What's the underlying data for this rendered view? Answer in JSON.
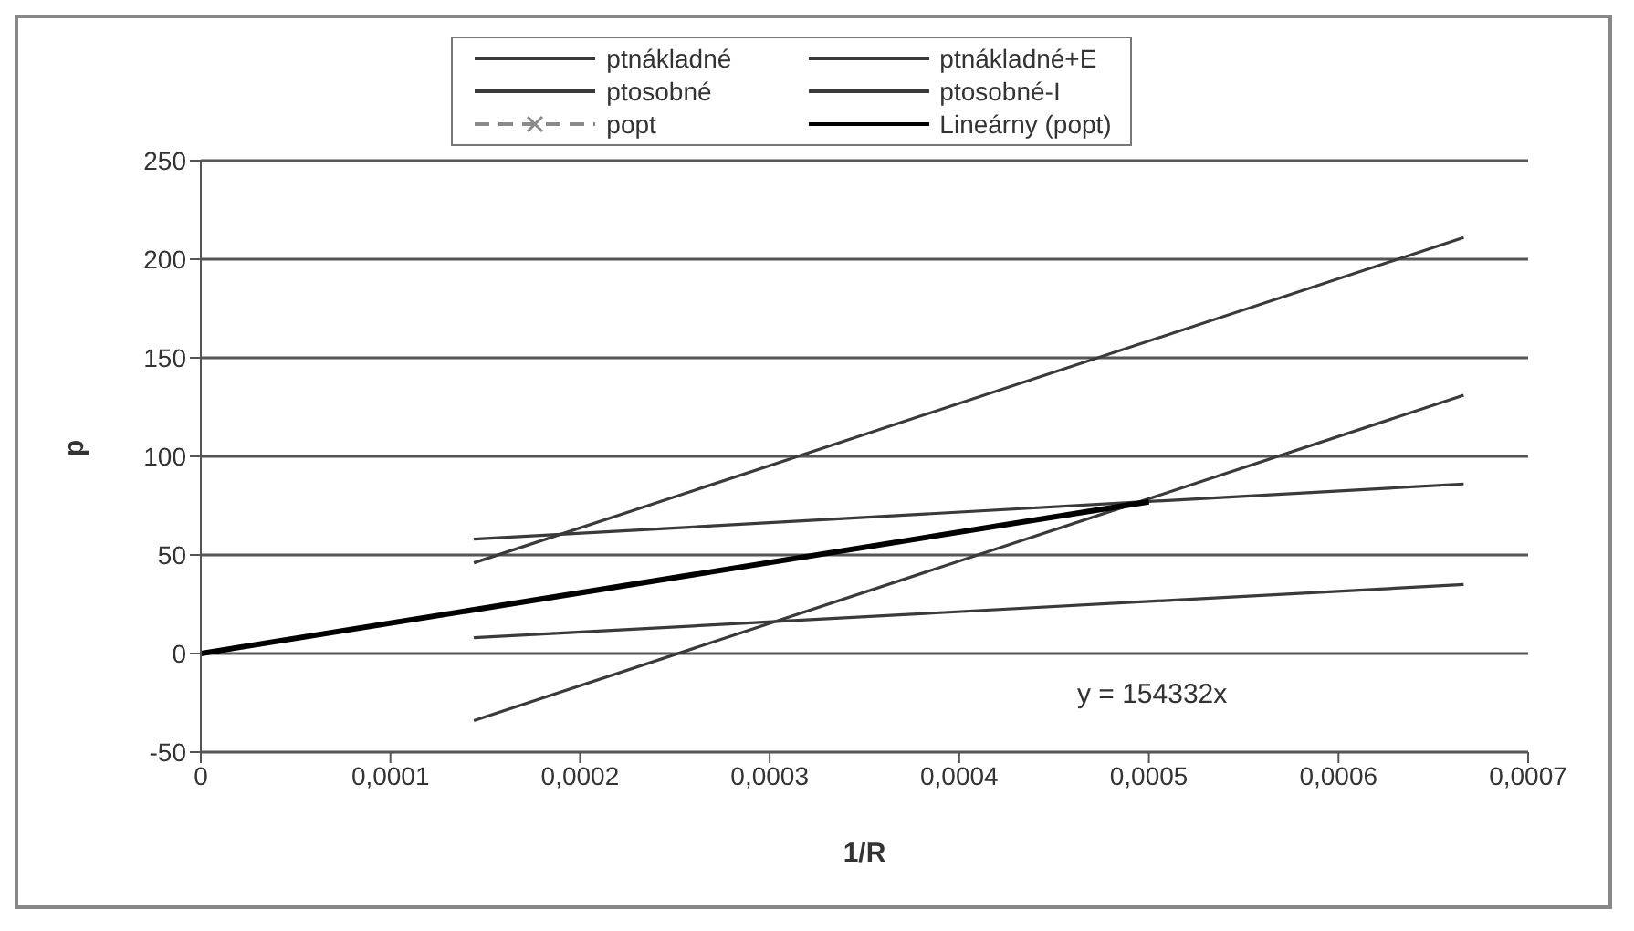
{
  "chart_data": {
    "type": "line",
    "xlabel": "1/R",
    "ylabel": "p",
    "xlim": [
      0,
      0.0007
    ],
    "xticks": [
      {
        "value": 0,
        "label": "0"
      },
      {
        "value": 0.0001,
        "label": "0,0001"
      },
      {
        "value": 0.0002,
        "label": "0,0002"
      },
      {
        "value": 0.0003,
        "label": "0,0003"
      },
      {
        "value": 0.0004,
        "label": "0,0004"
      },
      {
        "value": 0.0005,
        "label": "0,0005"
      },
      {
        "value": 0.0006,
        "label": "0,0006"
      },
      {
        "value": 0.0007,
        "label": "0,0007"
      }
    ],
    "ylim": [
      -50,
      250
    ],
    "yticks": [
      -50,
      0,
      50,
      100,
      150,
      200,
      250
    ],
    "grid": "y",
    "legend": "top",
    "series": [
      {
        "name": "ptnákladné",
        "color": "#3a3a3a",
        "x": [
          0.000144,
          0.000666
        ],
        "values": [
          46,
          211
        ]
      },
      {
        "name": "ptnákladné+E",
        "color": "#3a3a3a",
        "x": [
          0.000144,
          0.000666
        ],
        "values": [
          -34,
          131
        ]
      },
      {
        "name": "ptosobné",
        "color": "#3a3a3a",
        "x": [
          0.000144,
          0.000666
        ],
        "values": [
          58,
          86
        ]
      },
      {
        "name": "ptosobné-I",
        "color": "#3a3a3a",
        "x": [
          0.000144,
          0.000666
        ],
        "values": [
          8,
          35
        ]
      },
      {
        "name": "popt",
        "color": "#8a8a8a",
        "values": [
          null
        ],
        "line_style": "dashed",
        "marker": "cross"
      },
      {
        "name": "Lineárny (popt)",
        "color": "#000000",
        "x": [
          0,
          0.0005
        ],
        "values": [
          0,
          77
        ]
      }
    ],
    "annotations": [
      "y = 154332x"
    ]
  }
}
